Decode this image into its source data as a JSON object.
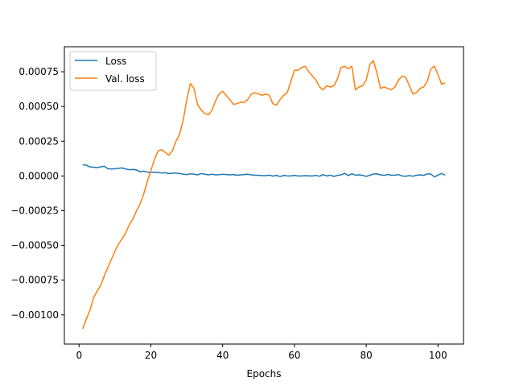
{
  "chart_data": {
    "type": "line",
    "title": "",
    "xlabel": "Epochs",
    "ylabel": "",
    "xlim": [
      -4.1,
      107.1
    ],
    "ylim": [
      -0.00121,
      0.00093
    ],
    "grid": false,
    "legend_position": "top-left",
    "x_ticks": [
      0,
      20,
      40,
      60,
      80,
      100
    ],
    "x_tick_labels": [
      "0",
      "20",
      "40",
      "60",
      "80",
      "100"
    ],
    "y_ticks": [
      -0.001,
      -0.00075,
      -0.0005,
      -0.00025,
      0,
      0.00025,
      0.0005,
      0.00075
    ],
    "y_tick_labels": [
      "−0.00100",
      "−0.00075",
      "−0.00050",
      "−0.00025",
      "0.00000",
      "0.00025",
      "0.00050",
      "0.00075"
    ],
    "series": [
      {
        "name": "Loss",
        "color": "#1f77b4",
        "x_start": 1,
        "values": [
          8e-05,
          7.8e-05,
          6.5e-05,
          6.3e-05,
          6e-05,
          6.5e-05,
          7e-05,
          5.2e-05,
          5e-05,
          5.2e-05,
          5.5e-05,
          5.8e-05,
          5e-05,
          4.5e-05,
          4.7e-05,
          4.3e-05,
          3e-05,
          3.5e-05,
          2.8e-05,
          2.5e-05,
          2.7e-05,
          2.5e-05,
          2.2e-05,
          2.3e-05,
          1.7e-05,
          2e-05,
          2e-05,
          1.8e-05,
          1.2e-05,
          1e-05,
          1.5e-05,
          1.3e-05,
          8e-06,
          1.7e-05,
          1.3e-05,
          8e-06,
          1.2e-05,
          8e-06,
          9e-06,
          1.2e-05,
          1e-05,
          8e-06,
          1e-05,
          5e-06,
          8e-06,
          1e-05,
          1.2e-05,
          8e-06,
          5e-06,
          5e-06,
          3e-06,
          2e-06,
          6e-06,
          -1e-06,
          4e-06,
          -4e-06,
          4e-06,
          1e-06,
          0.0,
          4e-06,
          0.0,
          0.0,
          2e-06,
          1e-06,
          0.0,
          4e-06,
          -2e-06,
          1e-05,
          0.0,
          6e-06,
          -3e-06,
          4e-06,
          8e-06,
          1.8e-05,
          3e-06,
          1.6e-05,
          6e-06,
          8e-06,
          4e-06,
          -3e-06,
          5e-06,
          1.4e-05,
          1.5e-05,
          8e-06,
          4e-06,
          1.1e-05,
          5e-06,
          6e-06,
          1e-05,
          0.0,
          -2e-06,
          3e-06,
          -2e-06,
          5e-06,
          8e-06,
          4e-06,
          1.5e-05,
          1.4e-05,
          -7e-06,
          6e-06,
          1.8e-05,
          5e-06
        ]
      },
      {
        "name": "Val. loss",
        "color": "#ff7f0e",
        "x_start": 1,
        "values": [
          -0.0011,
          -0.00103,
          -0.00097,
          -0.00088,
          -0.00083,
          -0.00079,
          -0.00072,
          -0.00066,
          -0.0006,
          -0.00054,
          -0.00049,
          -0.00045,
          -0.00041,
          -0.00035,
          -0.00031,
          -0.00025,
          -0.0002,
          -0.00013,
          -4e-05,
          4e-05,
          0.00012,
          0.00018,
          0.00019,
          0.00017,
          0.00015,
          0.00018,
          0.00025,
          0.0003,
          0.0004,
          0.00055,
          0.000665,
          0.00063,
          0.000515,
          0.000475,
          0.00045,
          0.00044,
          0.00047,
          0.00054,
          0.00059,
          0.00061,
          0.00058,
          0.00055,
          0.000515,
          0.00052,
          0.00053,
          0.00053,
          0.00055,
          0.00059,
          0.0006,
          0.00059,
          0.00058,
          0.00059,
          0.00058,
          0.00052,
          0.00051,
          0.00055,
          0.00058,
          0.0006,
          0.00068,
          0.00076,
          0.00076,
          0.00078,
          0.00079,
          0.00075,
          0.00072,
          0.00069,
          0.00064,
          0.00062,
          0.00065,
          0.00064,
          0.00065,
          0.0007,
          0.00078,
          0.00079,
          0.00077,
          0.00079,
          0.00062,
          0.00064,
          0.00065,
          0.00069,
          0.0008,
          0.00083,
          0.00074,
          0.00063,
          0.00064,
          0.00063,
          0.00062,
          0.00064,
          0.00069,
          0.00072,
          0.00071,
          0.00065,
          0.00059,
          0.0006,
          0.00063,
          0.00064,
          0.00068,
          0.00077,
          0.00079,
          0.00073,
          0.00066,
          0.00067
        ]
      }
    ]
  }
}
